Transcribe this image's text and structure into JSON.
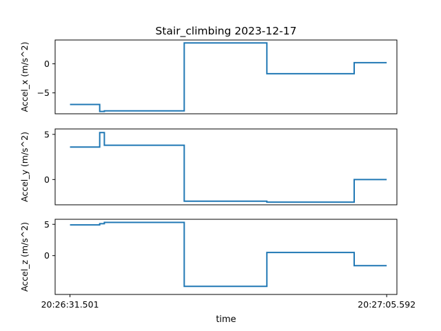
{
  "chart_data": {
    "type": "line",
    "title": "Stair_climbing  2023-12-17",
    "xlabel": "time",
    "x_tick_labels": [
      "20:26:31.501",
      "20:27:05.592"
    ],
    "line_color": "#1f77b4",
    "subplots": [
      {
        "ylabel": "Accel_x  (m/s^2)",
        "ylim": [
          -8.6,
          4.1
        ],
        "yticks": [
          0,
          -5
        ],
        "ytick_labels": [
          "0",
          "−5"
        ],
        "points": [
          [
            0.0,
            -7.0
          ],
          [
            3.2,
            -7.0
          ],
          [
            3.2,
            -8.2
          ],
          [
            3.7,
            -8.2
          ],
          [
            3.7,
            -8.1
          ],
          [
            12.3,
            -8.1
          ],
          [
            12.3,
            3.6
          ],
          [
            21.2,
            3.6
          ],
          [
            21.2,
            -1.7
          ],
          [
            30.6,
            -1.7
          ],
          [
            30.6,
            0.2
          ],
          [
            34.1,
            0.2
          ]
        ]
      },
      {
        "ylabel": "Accel_y  (m/s^2)",
        "ylim": [
          -2.8,
          5.6
        ],
        "yticks": [
          5,
          0
        ],
        "ytick_labels": [
          "5",
          "0"
        ],
        "points": [
          [
            0.0,
            3.6
          ],
          [
            3.2,
            3.6
          ],
          [
            3.2,
            5.2
          ],
          [
            3.7,
            5.2
          ],
          [
            3.7,
            3.8
          ],
          [
            12.3,
            3.8
          ],
          [
            12.3,
            -2.4
          ],
          [
            21.2,
            -2.4
          ],
          [
            21.2,
            -2.5
          ],
          [
            30.6,
            -2.5
          ],
          [
            30.6,
            0.0
          ],
          [
            34.1,
            0.0
          ]
        ]
      },
      {
        "ylabel": "Accel_z  (m/s^2)",
        "ylim": [
          -6.2,
          5.8
        ],
        "yticks": [
          5,
          0
        ],
        "ytick_labels": [
          "5",
          "0"
        ],
        "points": [
          [
            0.0,
            4.9
          ],
          [
            3.2,
            4.9
          ],
          [
            3.2,
            5.1
          ],
          [
            3.7,
            5.1
          ],
          [
            3.7,
            5.3
          ],
          [
            12.3,
            5.3
          ],
          [
            12.3,
            -4.9
          ],
          [
            21.2,
            -4.9
          ],
          [
            21.2,
            0.5
          ],
          [
            30.6,
            0.5
          ],
          [
            30.6,
            -1.6
          ],
          [
            34.1,
            -1.6
          ]
        ]
      }
    ]
  }
}
